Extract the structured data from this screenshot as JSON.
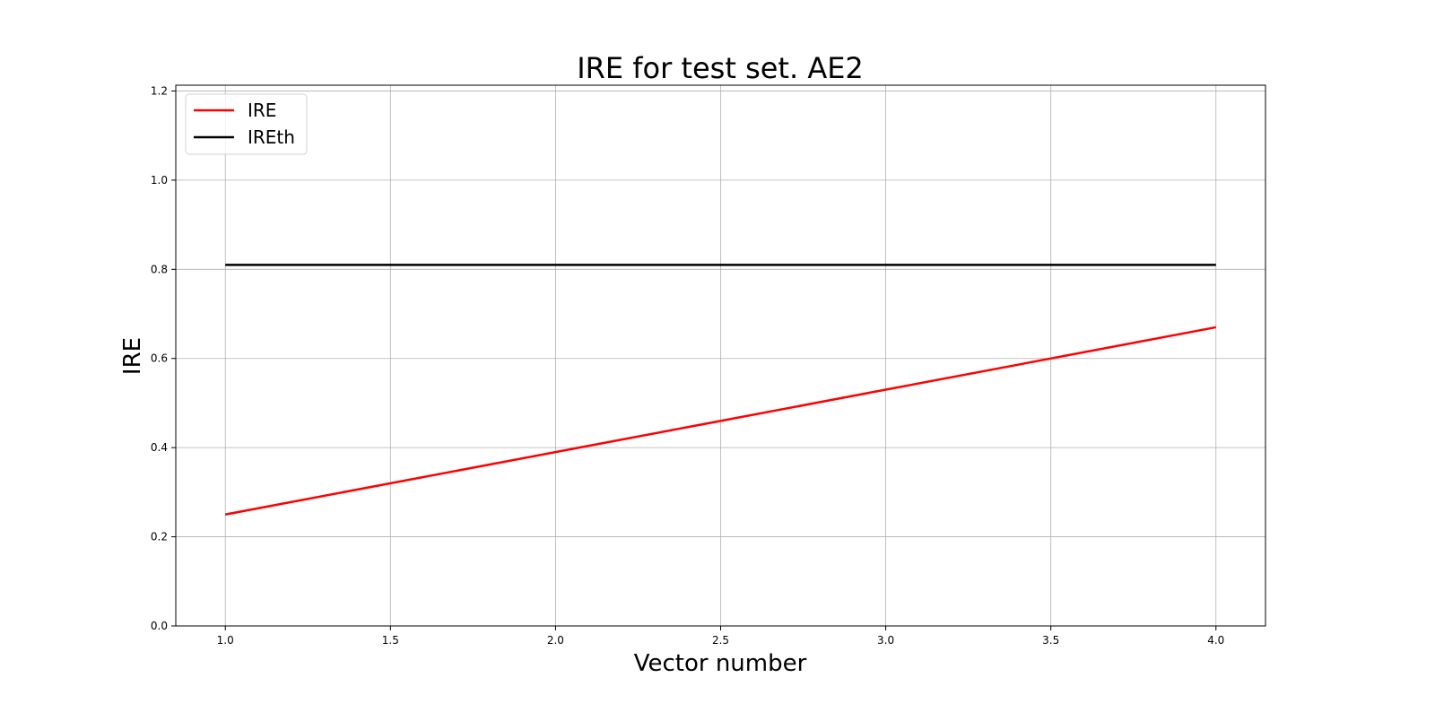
{
  "chart_data": {
    "type": "line",
    "title": "IRE for test set. AE2",
    "xlabel": "Vector number",
    "ylabel": "IRE",
    "xlim": [
      0.85,
      4.15
    ],
    "ylim": [
      0,
      1.213
    ],
    "xticks": [
      1.0,
      1.5,
      2.0,
      2.5,
      3.0,
      3.5,
      4.0
    ],
    "xtick_labels": [
      "1.0",
      "1.5",
      "2.0",
      "2.5",
      "3.0",
      "3.5",
      "4.0"
    ],
    "yticks": [
      0.0,
      0.2,
      0.4,
      0.6,
      0.8,
      1.0,
      1.2
    ],
    "ytick_labels": [
      "0.0",
      "0.2",
      "0.4",
      "0.6",
      "0.8",
      "1.0",
      "1.2"
    ],
    "grid": true,
    "legend_position": "top-left",
    "series": [
      {
        "name": "IRE",
        "color": "#ff0000",
        "x": [
          1,
          2,
          3,
          4
        ],
        "y": [
          0.25,
          0.39,
          0.53,
          0.67
        ]
      },
      {
        "name": "IREth",
        "color": "#000000",
        "x": [
          1,
          2,
          3,
          4
        ],
        "y": [
          0.81,
          0.81,
          0.81,
          0.81
        ]
      }
    ]
  }
}
